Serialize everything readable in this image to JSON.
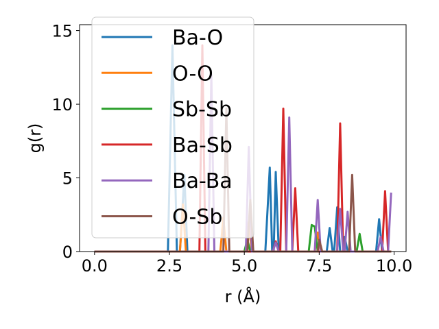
{
  "chart_data": {
    "type": "line",
    "xlabel": "r (Å)",
    "ylabel": "g(r)",
    "xlim": [
      -0.5,
      10.4
    ],
    "ylim": [
      0,
      15.4
    ],
    "xticks": [
      0.0,
      2.5,
      5.0,
      7.5,
      10.0
    ],
    "xtick_labels": [
      "0.0",
      "2.5",
      "5.0",
      "7.5",
      "10.0"
    ],
    "yticks": [
      0,
      5,
      10,
      15
    ],
    "ytick_labels": [
      "0",
      "5",
      "10",
      "15"
    ],
    "grid": false,
    "legend_position": "upper-left",
    "series": [
      {
        "name": "Ba-O",
        "color": "#1f77b4",
        "points": [
          [
            0,
            0
          ],
          [
            2.45,
            0
          ],
          [
            2.6,
            14.0
          ],
          [
            2.75,
            0
          ],
          [
            2.85,
            0
          ],
          [
            3.0,
            5.2
          ],
          [
            3.1,
            0
          ],
          [
            5.7,
            0
          ],
          [
            5.85,
            5.7
          ],
          [
            5.93,
            0
          ],
          [
            5.98,
            0
          ],
          [
            6.05,
            5.4
          ],
          [
            6.15,
            0
          ],
          [
            7.75,
            0
          ],
          [
            7.85,
            1.6
          ],
          [
            7.95,
            0
          ],
          [
            8.0,
            0
          ],
          [
            8.1,
            3.0
          ],
          [
            8.2,
            0
          ],
          [
            8.3,
            0
          ],
          [
            8.35,
            1.0
          ],
          [
            8.45,
            0
          ],
          [
            9.4,
            0
          ],
          [
            9.5,
            2.2
          ],
          [
            9.6,
            0
          ],
          [
            9.9,
            0
          ]
        ]
      },
      {
        "name": "O-O",
        "color": "#ff7f0e",
        "points": [
          [
            0,
            0
          ],
          [
            2.85,
            0
          ],
          [
            2.95,
            3.2
          ],
          [
            3.05,
            0
          ],
          [
            4.2,
            0
          ],
          [
            4.3,
            2.3
          ],
          [
            4.4,
            0
          ],
          [
            5.05,
            0
          ],
          [
            5.15,
            2.0
          ],
          [
            5.25,
            0
          ],
          [
            7.35,
            0
          ],
          [
            7.45,
            1.3
          ],
          [
            7.55,
            0
          ],
          [
            9.9,
            0
          ]
        ]
      },
      {
        "name": "Sb-Sb",
        "color": "#2ca02c",
        "points": [
          [
            0,
            0
          ],
          [
            5.0,
            0
          ],
          [
            5.1,
            0.8
          ],
          [
            5.2,
            0
          ],
          [
            7.15,
            0
          ],
          [
            7.25,
            1.8
          ],
          [
            7.35,
            1.7
          ],
          [
            7.45,
            0
          ],
          [
            8.75,
            0
          ],
          [
            8.85,
            1.2
          ],
          [
            8.95,
            0
          ],
          [
            9.9,
            0
          ]
        ]
      },
      {
        "name": "Ba-Sb",
        "color": "#d62728",
        "points": [
          [
            0,
            0
          ],
          [
            3.5,
            0
          ],
          [
            3.6,
            14.0
          ],
          [
            3.7,
            0
          ],
          [
            5.95,
            0
          ],
          [
            6.05,
            0.7
          ],
          [
            6.15,
            0
          ],
          [
            6.2,
            0
          ],
          [
            6.3,
            9.7
          ],
          [
            6.4,
            0
          ],
          [
            6.6,
            0
          ],
          [
            6.7,
            4.3
          ],
          [
            6.8,
            0
          ],
          [
            8.1,
            0
          ],
          [
            8.2,
            8.7
          ],
          [
            8.3,
            0
          ],
          [
            9.6,
            0
          ],
          [
            9.7,
            4.1
          ],
          [
            9.8,
            0
          ],
          [
            9.9,
            0
          ]
        ]
      },
      {
        "name": "Ba-Ba",
        "color": "#9467bd",
        "points": [
          [
            0,
            0
          ],
          [
            3.8,
            0
          ],
          [
            3.9,
            12.0
          ],
          [
            4.0,
            0
          ],
          [
            5.05,
            0
          ],
          [
            5.15,
            7.1
          ],
          [
            5.25,
            0
          ],
          [
            5.95,
            0
          ],
          [
            6.05,
            0.6
          ],
          [
            6.15,
            0
          ],
          [
            6.4,
            0
          ],
          [
            6.5,
            9.1
          ],
          [
            6.6,
            0
          ],
          [
            7.35,
            0
          ],
          [
            7.45,
            3.5
          ],
          [
            7.55,
            0
          ],
          [
            8.1,
            0
          ],
          [
            8.2,
            2.9
          ],
          [
            8.3,
            0
          ],
          [
            8.35,
            0
          ],
          [
            8.45,
            2.7
          ],
          [
            8.55,
            0
          ],
          [
            9.45,
            0
          ],
          [
            9.55,
            1.0
          ],
          [
            9.65,
            0
          ],
          [
            9.8,
            0
          ],
          [
            9.9,
            4.0
          ]
        ]
      },
      {
        "name": "O-Sb",
        "color": "#8c564b",
        "points": [
          [
            0,
            0
          ],
          [
            4.3,
            0
          ],
          [
            4.4,
            9.7
          ],
          [
            4.5,
            0
          ],
          [
            5.1,
            0
          ],
          [
            5.2,
            3.5
          ],
          [
            5.3,
            0
          ],
          [
            7.45,
            0
          ],
          [
            7.5,
            0.8
          ],
          [
            7.6,
            0
          ],
          [
            8.5,
            0
          ],
          [
            8.6,
            5.2
          ],
          [
            8.7,
            0
          ],
          [
            9.9,
            0
          ]
        ]
      }
    ]
  }
}
